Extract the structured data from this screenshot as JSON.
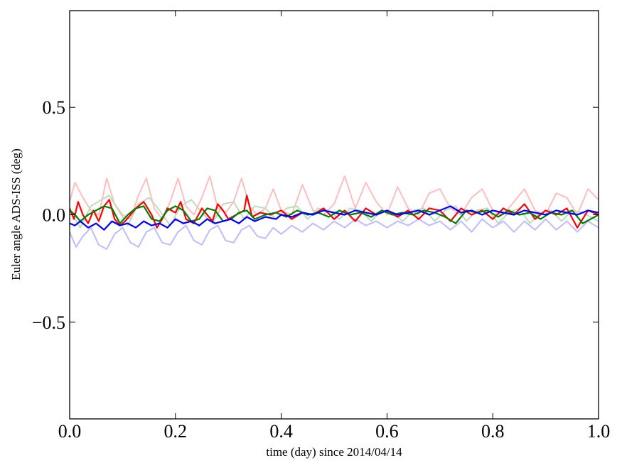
{
  "chart_data": {
    "type": "line",
    "title": "",
    "xlabel": "time (day) since 2014/04/14",
    "ylabel": "Euler angle ADS-ISS (deg)",
    "xlim": [
      0.0,
      1.0
    ],
    "ylim": [
      -0.95,
      0.95
    ],
    "xticks": [
      0.0,
      0.2,
      0.4,
      0.6,
      0.8,
      1.0
    ],
    "xtick_labels": [
      "0.0",
      "0.2",
      "0.4",
      "0.6",
      "0.8",
      "1.0"
    ],
    "yticks": [
      -0.5,
      0.0,
      0.5
    ],
    "ytick_labels": [
      "−0.5",
      "0.0",
      "0.5"
    ],
    "grid": false,
    "legend": "none",
    "series": [
      {
        "color": "#ffbdbd",
        "x": [
          0.0,
          0.01,
          0.025,
          0.04,
          0.055,
          0.07,
          0.085,
          0.1,
          0.115,
          0.13,
          0.145,
          0.16,
          0.175,
          0.19,
          0.205,
          0.22,
          0.235,
          0.25,
          0.265,
          0.28,
          0.295,
          0.31,
          0.325,
          0.34,
          0.355,
          0.37,
          0.385,
          0.4,
          0.42,
          0.44,
          0.46,
          0.48,
          0.5,
          0.52,
          0.54,
          0.56,
          0.58,
          0.6,
          0.62,
          0.64,
          0.66,
          0.68,
          0.7,
          0.72,
          0.74,
          0.76,
          0.78,
          0.8,
          0.82,
          0.84,
          0.86,
          0.88,
          0.9,
          0.92,
          0.94,
          0.96,
          0.98,
          1.0
        ],
        "y": [
          0.06,
          0.15,
          0.08,
          0.02,
          0.0,
          0.17,
          0.05,
          0.0,
          -0.02,
          0.09,
          0.17,
          0.03,
          -0.02,
          0.06,
          0.17,
          0.04,
          0.0,
          0.08,
          0.18,
          0.03,
          0.01,
          0.06,
          0.17,
          0.04,
          0.0,
          0.03,
          0.12,
          0.02,
          0.0,
          0.14,
          0.02,
          0.0,
          0.05,
          0.18,
          0.03,
          0.15,
          0.06,
          0.0,
          0.13,
          0.03,
          0.0,
          0.1,
          0.12,
          0.03,
          0.0,
          0.08,
          0.12,
          0.02,
          0.0,
          0.06,
          0.12,
          0.02,
          0.0,
          0.1,
          0.08,
          0.0,
          0.12,
          0.07
        ]
      },
      {
        "color": "#bcdcbc",
        "x": [
          0.0,
          0.02,
          0.04,
          0.06,
          0.075,
          0.09,
          0.11,
          0.13,
          0.15,
          0.17,
          0.19,
          0.21,
          0.23,
          0.25,
          0.27,
          0.29,
          0.31,
          0.33,
          0.35,
          0.37,
          0.39,
          0.41,
          0.43,
          0.45,
          0.47,
          0.49,
          0.51,
          0.53,
          0.55,
          0.57,
          0.59,
          0.61,
          0.63,
          0.65,
          0.67,
          0.69,
          0.71,
          0.73,
          0.75,
          0.77,
          0.79,
          0.81,
          0.83,
          0.85,
          0.87,
          0.89,
          0.91,
          0.93,
          0.95,
          0.97,
          1.0
        ],
        "y": [
          0.02,
          -0.06,
          0.04,
          0.07,
          0.09,
          0.03,
          -0.05,
          0.05,
          0.08,
          0.02,
          -0.05,
          0.04,
          0.07,
          0.01,
          -0.04,
          0.05,
          0.06,
          -0.02,
          0.04,
          0.03,
          -0.02,
          0.03,
          0.04,
          -0.02,
          0.03,
          0.02,
          -0.02,
          0.03,
          0.02,
          -0.03,
          0.02,
          0.01,
          -0.03,
          0.02,
          0.03,
          -0.03,
          0.02,
          0.04,
          -0.03,
          0.02,
          0.03,
          -0.04,
          0.01,
          0.03,
          -0.04,
          0.01,
          0.02,
          -0.03,
          0.02,
          0.01,
          -0.03
        ]
      },
      {
        "color": "#bcbcff",
        "x": [
          0.0,
          0.012,
          0.025,
          0.04,
          0.055,
          0.07,
          0.085,
          0.1,
          0.115,
          0.13,
          0.145,
          0.16,
          0.175,
          0.19,
          0.205,
          0.22,
          0.235,
          0.25,
          0.265,
          0.28,
          0.295,
          0.31,
          0.325,
          0.34,
          0.355,
          0.37,
          0.385,
          0.4,
          0.42,
          0.44,
          0.46,
          0.48,
          0.5,
          0.52,
          0.54,
          0.56,
          0.58,
          0.6,
          0.62,
          0.64,
          0.66,
          0.68,
          0.7,
          0.72,
          0.74,
          0.76,
          0.78,
          0.8,
          0.82,
          0.84,
          0.86,
          0.88,
          0.9,
          0.92,
          0.94,
          0.96,
          0.98,
          1.0
        ],
        "y": [
          -0.08,
          -0.15,
          -0.1,
          -0.06,
          -0.14,
          -0.16,
          -0.09,
          -0.06,
          -0.13,
          -0.15,
          -0.08,
          -0.06,
          -0.13,
          -0.14,
          -0.08,
          -0.05,
          -0.12,
          -0.14,
          -0.07,
          -0.05,
          -0.12,
          -0.13,
          -0.07,
          -0.05,
          -0.1,
          -0.11,
          -0.06,
          -0.09,
          -0.05,
          -0.08,
          -0.04,
          -0.07,
          -0.03,
          -0.06,
          -0.02,
          -0.05,
          -0.03,
          -0.06,
          -0.03,
          -0.05,
          -0.02,
          -0.05,
          -0.03,
          -0.07,
          -0.03,
          -0.08,
          -0.02,
          -0.06,
          -0.03,
          -0.08,
          -0.03,
          -0.07,
          -0.02,
          -0.07,
          -0.03,
          -0.08,
          -0.03,
          -0.06
        ]
      },
      {
        "color": "#ff0000",
        "x": [
          0.0,
          0.008,
          0.016,
          0.025,
          0.035,
          0.045,
          0.055,
          0.065,
          0.075,
          0.085,
          0.095,
          0.105,
          0.115,
          0.125,
          0.14,
          0.155,
          0.165,
          0.175,
          0.185,
          0.2,
          0.21,
          0.22,
          0.235,
          0.25,
          0.26,
          0.27,
          0.28,
          0.29,
          0.3,
          0.315,
          0.33,
          0.335,
          0.345,
          0.36,
          0.38,
          0.4,
          0.42,
          0.44,
          0.46,
          0.48,
          0.5,
          0.52,
          0.54,
          0.56,
          0.58,
          0.6,
          0.62,
          0.64,
          0.66,
          0.68,
          0.7,
          0.72,
          0.74,
          0.76,
          0.78,
          0.8,
          0.82,
          0.84,
          0.86,
          0.88,
          0.9,
          0.92,
          0.94,
          0.96,
          0.98,
          1.0
        ],
        "y": [
          0.03,
          -0.02,
          0.06,
          0.0,
          -0.04,
          0.02,
          -0.03,
          0.04,
          0.07,
          -0.02,
          -0.05,
          -0.03,
          0.0,
          0.03,
          0.06,
          0.0,
          -0.06,
          -0.02,
          0.03,
          0.01,
          0.06,
          -0.02,
          -0.04,
          0.03,
          0.0,
          -0.03,
          0.05,
          0.02,
          -0.02,
          0.0,
          0.02,
          0.09,
          -0.01,
          0.01,
          0.0,
          0.02,
          -0.02,
          0.01,
          0.0,
          0.03,
          -0.02,
          0.02,
          -0.03,
          0.03,
          0.0,
          0.02,
          -0.01,
          0.02,
          -0.02,
          0.03,
          0.02,
          -0.03,
          0.03,
          0.0,
          0.02,
          -0.02,
          0.03,
          0.0,
          0.05,
          -0.02,
          0.02,
          0.0,
          0.03,
          -0.06,
          0.02,
          0.0
        ]
      },
      {
        "color": "#008000",
        "x": [
          0.0,
          0.01,
          0.02,
          0.035,
          0.05,
          0.065,
          0.08,
          0.095,
          0.11,
          0.125,
          0.14,
          0.155,
          0.17,
          0.185,
          0.2,
          0.215,
          0.23,
          0.245,
          0.26,
          0.275,
          0.29,
          0.305,
          0.32,
          0.335,
          0.35,
          0.37,
          0.39,
          0.41,
          0.43,
          0.45,
          0.47,
          0.49,
          0.51,
          0.53,
          0.55,
          0.57,
          0.59,
          0.61,
          0.63,
          0.65,
          0.67,
          0.69,
          0.71,
          0.73,
          0.75,
          0.77,
          0.79,
          0.81,
          0.83,
          0.85,
          0.87,
          0.89,
          0.91,
          0.93,
          0.95,
          0.97,
          1.0
        ],
        "y": [
          0.02,
          0.0,
          -0.03,
          0.0,
          0.02,
          0.04,
          0.03,
          -0.04,
          0.0,
          0.03,
          0.04,
          -0.02,
          -0.03,
          0.02,
          0.04,
          0.02,
          -0.03,
          -0.02,
          0.03,
          0.02,
          -0.03,
          -0.02,
          0.01,
          0.02,
          -0.02,
          0.0,
          0.01,
          -0.01,
          0.02,
          0.0,
          0.01,
          -0.01,
          0.02,
          0.0,
          0.01,
          -0.01,
          0.02,
          0.0,
          0.01,
          0.0,
          0.02,
          0.01,
          -0.01,
          -0.04,
          0.02,
          0.01,
          0.02,
          -0.01,
          0.02,
          0.0,
          0.01,
          -0.02,
          0.01,
          0.0,
          0.02,
          -0.04,
          0.0
        ]
      },
      {
        "color": "#0000ff",
        "x": [
          0.0,
          0.01,
          0.02,
          0.035,
          0.05,
          0.065,
          0.08,
          0.095,
          0.11,
          0.125,
          0.14,
          0.155,
          0.17,
          0.185,
          0.2,
          0.215,
          0.23,
          0.245,
          0.26,
          0.275,
          0.29,
          0.305,
          0.32,
          0.335,
          0.35,
          0.37,
          0.39,
          0.4,
          0.42,
          0.44,
          0.46,
          0.48,
          0.5,
          0.52,
          0.54,
          0.56,
          0.58,
          0.6,
          0.62,
          0.64,
          0.66,
          0.68,
          0.7,
          0.72,
          0.74,
          0.76,
          0.78,
          0.8,
          0.82,
          0.84,
          0.86,
          0.88,
          0.9,
          0.92,
          0.94,
          0.96,
          0.98,
          1.0
        ],
        "y": [
          -0.04,
          -0.05,
          -0.03,
          -0.06,
          -0.04,
          -0.07,
          -0.03,
          -0.05,
          -0.04,
          -0.06,
          -0.03,
          -0.05,
          -0.04,
          -0.06,
          -0.02,
          -0.04,
          -0.03,
          -0.05,
          -0.02,
          -0.04,
          -0.03,
          -0.02,
          -0.04,
          -0.01,
          -0.03,
          -0.01,
          -0.02,
          0.0,
          -0.01,
          0.01,
          0.0,
          0.02,
          0.01,
          0.0,
          0.02,
          0.01,
          0.0,
          0.02,
          0.0,
          0.01,
          0.02,
          0.0,
          0.02,
          0.04,
          0.01,
          0.02,
          0.0,
          0.02,
          0.01,
          0.0,
          0.02,
          0.01,
          0.0,
          0.02,
          0.01,
          0.0,
          0.02,
          0.01
        ]
      }
    ]
  }
}
